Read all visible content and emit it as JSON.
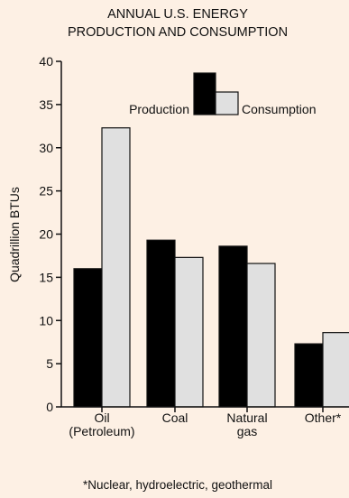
{
  "chart_data": {
    "type": "bar",
    "title": [
      "ANNUAL U.S. ENERGY",
      "PRODUCTION AND CONSUMPTION"
    ],
    "ylabel": "Quadrillion BTUs",
    "xlabel": "",
    "ylim": [
      0,
      40
    ],
    "yticks": [
      0,
      5,
      10,
      15,
      20,
      25,
      30,
      35,
      40
    ],
    "categories": [
      [
        "Oil",
        "(Petroleum)"
      ],
      [
        "Coal"
      ],
      [
        "Natural",
        "gas"
      ],
      [
        "Other*"
      ]
    ],
    "series": [
      {
        "name": "Production",
        "color": "#000000",
        "values": [
          16,
          19.3,
          18.6,
          7.3
        ]
      },
      {
        "name": "Consumption",
        "color": "#e0e0e0",
        "values": [
          32.3,
          17.3,
          16.6,
          8.6
        ]
      }
    ],
    "legend_placement": "top-right",
    "grid": false,
    "footnote": "*Nuclear, hydroelectric, geothermal"
  }
}
